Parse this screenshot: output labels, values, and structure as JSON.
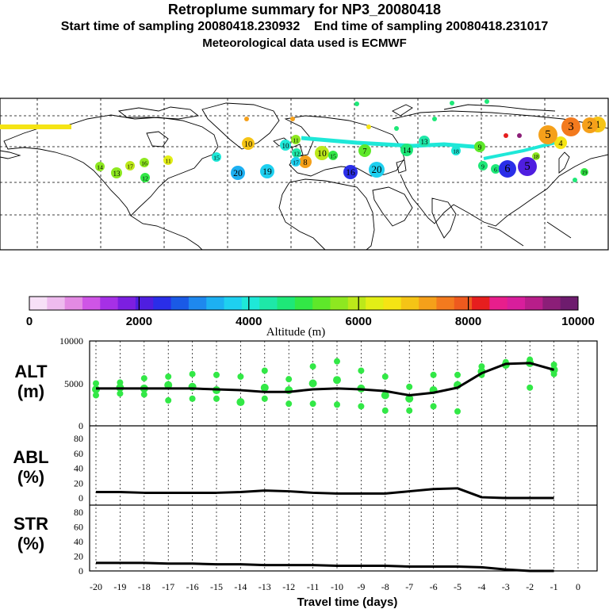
{
  "header": {
    "title": "Retroplume summary for NP3_20080418",
    "start_label": "Start time of sampling 20080418.230932",
    "end_label": "End time of sampling 20080418.231017",
    "met_label": "Meteorological data used is ECMWF"
  },
  "colorbar": {
    "tick_labels": [
      "0",
      "2000",
      "4000",
      "6000",
      "8000",
      "10000"
    ],
    "title": "Altitude (m)",
    "colors": [
      "#f7e0f7",
      "#eebbee",
      "#e38ae3",
      "#cf55e6",
      "#a630e6",
      "#7c1fe0",
      "#4f1ee0",
      "#2a2ee8",
      "#1a5ae6",
      "#1e88ee",
      "#1db0f2",
      "#1ed0f0",
      "#1ee8d8",
      "#1ee8a8",
      "#1ee878",
      "#32e846",
      "#5ee82a",
      "#8ee820",
      "#bce81a",
      "#e2ee16",
      "#f5e414",
      "#f5c416",
      "#f5a01a",
      "#f37a1e",
      "#ee5a1e",
      "#e61e1e",
      "#e81e8c",
      "#d81e9c",
      "#b81e8a",
      "#8c1e78",
      "#6e1c6e"
    ]
  },
  "map": {
    "labels": [
      "1",
      "2",
      "3",
      "4",
      "5",
      "5",
      "6",
      "6",
      "7",
      "8",
      "9",
      "9",
      "10",
      "10",
      "10",
      "11",
      "11",
      "12",
      "12",
      "13",
      "13",
      "14",
      "14",
      "15",
      "15",
      "16",
      "16",
      "17",
      "17",
      "18",
      "18",
      "19",
      "19",
      "20",
      "20"
    ]
  },
  "panels": {
    "alt_label": [
      "ALT",
      "(m)"
    ],
    "abl_label": [
      "ABL",
      "(%)"
    ],
    "str_label": [
      "STR",
      "(%)"
    ],
    "alt_ticks": [
      "10000",
      "5000",
      "0"
    ],
    "pct_ticks": [
      "80",
      "60",
      "40",
      "20",
      "0"
    ]
  },
  "xaxis": {
    "ticks": [
      "-20",
      "-19",
      "-18",
      "-17",
      "-16",
      "-15",
      "-14",
      "-13",
      "-12",
      "-11",
      "-10",
      "-9",
      "-8",
      "-7",
      "-6",
      "-5",
      "-4",
      "-3",
      "-2",
      "-1",
      "0"
    ],
    "label": "Travel time (days)"
  },
  "chart_data": [
    {
      "type": "line",
      "title": "ALT (m)",
      "x": [
        -20,
        -19,
        -18,
        -17,
        -16,
        -15,
        -14,
        -13,
        -12,
        -11,
        -10,
        -9,
        -8,
        -7,
        -6,
        -5,
        -4,
        -3,
        -2,
        -1
      ],
      "series": [
        {
          "name": "mean altitude",
          "values": [
            4400,
            4400,
            4400,
            4400,
            4400,
            4300,
            4200,
            4000,
            4000,
            4300,
            4400,
            4300,
            4100,
            3600,
            3900,
            4500,
            6200,
            7300,
            7400,
            6600
          ]
        }
      ],
      "scatter": [
        {
          "x": -20,
          "y": [
            5000,
            4300,
            3600
          ]
        },
        {
          "x": -19,
          "y": [
            5100,
            4500,
            3800
          ]
        },
        {
          "x": -18,
          "y": [
            5600,
            4400,
            3700
          ]
        },
        {
          "x": -17,
          "y": [
            5800,
            4800,
            3000
          ]
        },
        {
          "x": -16,
          "y": [
            6100,
            4600,
            3200
          ]
        },
        {
          "x": -15,
          "y": [
            6000,
            4200,
            3200
          ]
        },
        {
          "x": -14,
          "y": [
            5800,
            2800
          ]
        },
        {
          "x": -13,
          "y": [
            6500,
            4500,
            3200
          ]
        },
        {
          "x": -12,
          "y": [
            5500,
            4200,
            2600
          ]
        },
        {
          "x": -11,
          "y": [
            7000,
            5000,
            2600
          ]
        },
        {
          "x": -10,
          "y": [
            7600,
            5400,
            2500
          ]
        },
        {
          "x": -9,
          "y": [
            6500,
            4400,
            2300
          ]
        },
        {
          "x": -8,
          "y": [
            5800,
            3600,
            1800
          ]
        },
        {
          "x": -7,
          "y": [
            4600,
            3200,
            1800
          ]
        },
        {
          "x": -6,
          "y": [
            6000,
            4200,
            2300
          ]
        },
        {
          "x": -5,
          "y": [
            6000,
            4800,
            1700
          ]
        },
        {
          "x": -4,
          "y": [
            7000,
            6400,
            6000
          ]
        },
        {
          "x": -3,
          "y": [
            7500,
            7200
          ]
        },
        {
          "x": -2,
          "y": [
            7800,
            7400,
            4500
          ]
        },
        {
          "x": -1,
          "y": [
            7200,
            6600,
            6100
          ]
        }
      ],
      "ylim": [
        0,
        10000
      ],
      "xlabel": "Travel time (days)",
      "ylabel": "ALT (m)"
    },
    {
      "type": "line",
      "title": "ABL (%)",
      "x": [
        -20,
        -19,
        -18,
        -17,
        -16,
        -15,
        -14,
        -13,
        -12,
        -11,
        -10,
        -9,
        -8,
        -7,
        -6,
        -5,
        -4,
        -3,
        -2,
        -1
      ],
      "series": [
        {
          "name": "ABL fraction",
          "values": [
            8,
            8,
            7,
            7,
            7,
            7,
            8,
            10,
            9,
            7,
            6,
            6,
            6,
            9,
            12,
            13,
            1,
            0,
            0,
            0
          ]
        }
      ],
      "ylim": [
        0,
        95
      ],
      "xlabel": "Travel time (days)",
      "ylabel": "ABL (%)"
    },
    {
      "type": "line",
      "title": "STR (%)",
      "x": [
        -20,
        -19,
        -18,
        -17,
        -16,
        -15,
        -14,
        -13,
        -12,
        -11,
        -10,
        -9,
        -8,
        -7,
        -6,
        -5,
        -4,
        -3,
        -2,
        -1
      ],
      "series": [
        {
          "name": "stratospheric fraction",
          "values": [
            11,
            11,
            11,
            10,
            10,
            9,
            9,
            8,
            8,
            8,
            7,
            7,
            7,
            6,
            6,
            6,
            5,
            2,
            0,
            0
          ]
        }
      ],
      "ylim": [
        0,
        95
      ],
      "xlabel": "Travel time (days)",
      "ylabel": "STR (%)"
    }
  ]
}
